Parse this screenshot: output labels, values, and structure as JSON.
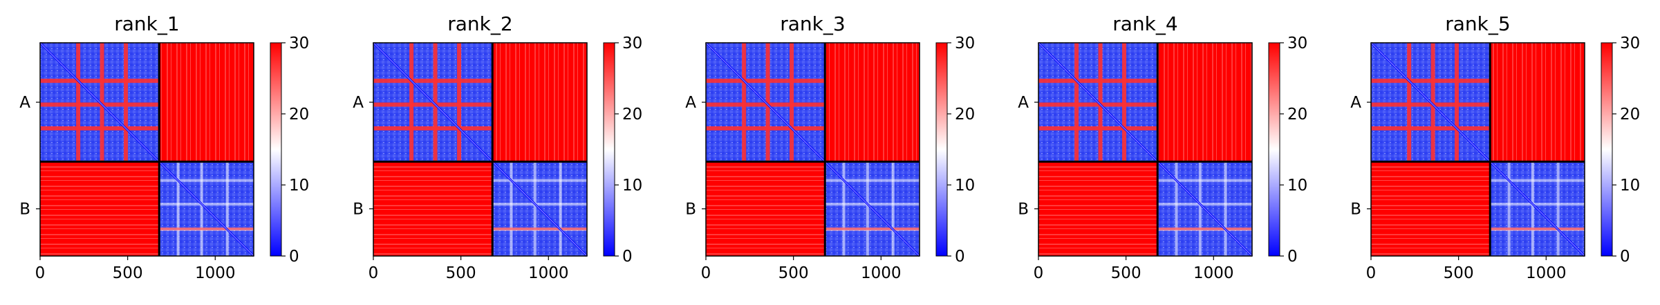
{
  "chart_data": [
    {
      "type": "heatmap",
      "title": "rank_1",
      "ylabels": [
        "A",
        "B"
      ],
      "xticks": [
        0,
        500,
        1000
      ],
      "colorbar_ticks": [
        0,
        10,
        20,
        30
      ],
      "vlim": [
        0,
        30
      ],
      "chain_boundary": 680,
      "xlim": [
        0,
        1220
      ],
      "colormap": "bwr"
    },
    {
      "type": "heatmap",
      "title": "rank_2",
      "ylabels": [
        "A",
        "B"
      ],
      "xticks": [
        0,
        500,
        1000
      ],
      "colorbar_ticks": [
        0,
        10,
        20,
        30
      ],
      "vlim": [
        0,
        30
      ],
      "chain_boundary": 680,
      "xlim": [
        0,
        1220
      ],
      "colormap": "bwr"
    },
    {
      "type": "heatmap",
      "title": "rank_3",
      "ylabels": [
        "A",
        "B"
      ],
      "xticks": [
        0,
        500,
        1000
      ],
      "colorbar_ticks": [
        0,
        10,
        20,
        30
      ],
      "vlim": [
        0,
        30
      ],
      "chain_boundary": 680,
      "xlim": [
        0,
        1220
      ],
      "colormap": "bwr"
    },
    {
      "type": "heatmap",
      "title": "rank_4",
      "ylabels": [
        "A",
        "B"
      ],
      "xticks": [
        0,
        500,
        1000
      ],
      "colorbar_ticks": [
        0,
        10,
        20,
        30
      ],
      "vlim": [
        0,
        30
      ],
      "chain_boundary": 680,
      "xlim": [
        0,
        1220
      ],
      "colormap": "bwr"
    },
    {
      "type": "heatmap",
      "title": "rank_5",
      "ylabels": [
        "A",
        "B"
      ],
      "xticks": [
        0,
        500,
        1000
      ],
      "colorbar_ticks": [
        0,
        10,
        20,
        30
      ],
      "vlim": [
        0,
        30
      ],
      "chain_boundary": 680,
      "xlim": [
        0,
        1220
      ],
      "colormap": "bwr"
    }
  ],
  "colors": {
    "low": "#0000ff",
    "mid": "#ffffff",
    "high": "#ff0000"
  }
}
